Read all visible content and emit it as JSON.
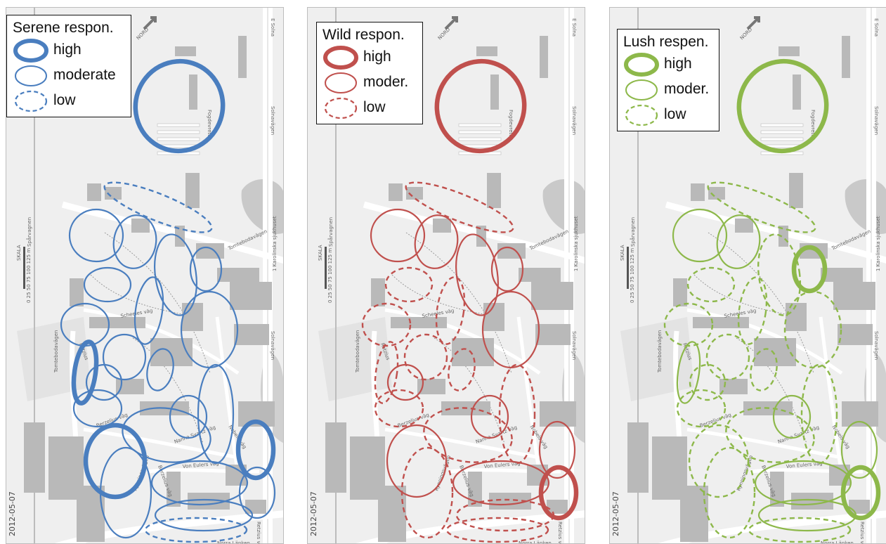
{
  "panels": [
    {
      "legend": {
        "title": "Serene respon.",
        "high": "high",
        "moderate": "moderate",
        "low": "low"
      },
      "color": "#4a7ebf",
      "levels": [
        "high",
        "low",
        "moderate",
        "moderate",
        "moderate",
        "moderate",
        "moderate",
        "moderate",
        "moderate",
        "moderate",
        "moderate",
        "moderate",
        "moderate",
        "high",
        "moderate",
        "moderate",
        "moderate",
        "moderate",
        "high",
        "high",
        "moderate",
        "moderate",
        "moderate",
        "moderate",
        "low"
      ]
    },
    {
      "legend": {
        "title": "Wild respon.",
        "high": "high",
        "moderate": "moder.",
        "low": "low"
      },
      "color": "#c0504d",
      "levels": [
        "high",
        "low",
        "moderate",
        "moderate",
        "moderate",
        "moderate",
        "low",
        "low",
        "moderate",
        "low",
        "low",
        "low",
        "moderate",
        "low",
        "low",
        "low",
        "moderate",
        "low",
        "moderate",
        "moderate",
        "moderate",
        "high",
        "low",
        "low",
        "low"
      ]
    },
    {
      "legend": {
        "title": "Lush respen.",
        "high": "high",
        "moderate": "moder.",
        "low": "low"
      },
      "color": "#8db84a",
      "levels": [
        "high",
        "low",
        "moderate",
        "moderate",
        "low",
        "high",
        "low",
        "low",
        "low",
        "low",
        "low",
        "low",
        "low",
        "moderate",
        "low",
        "low",
        "moderate",
        "low",
        "low",
        "moderate",
        "moderate",
        "high",
        "low",
        "moderate",
        "low"
      ]
    }
  ],
  "map": {
    "date": "2012-05-07",
    "street_labels": [
      "Solnavägen",
      "Fogdevreten",
      "Tomtebodavägen",
      "1 Karolinska sjukhuset",
      "Scheeles väg",
      "Nobels väg",
      "Berzelius väg",
      "Von Eulers väg",
      "Nanna Svartz väg",
      "Retzius väg",
      "Norra Länken",
      "Tomtebodavägen",
      "Rynningsvägen",
      "Berzelius väg",
      "Solnavägen",
      "E Solna",
      "Spårvagnen",
      "Retzius"
    ],
    "scale_label": "SKALA",
    "scale_ticks": "0  25  50  75  100  125 m",
    "north_label": "NORD"
  }
}
